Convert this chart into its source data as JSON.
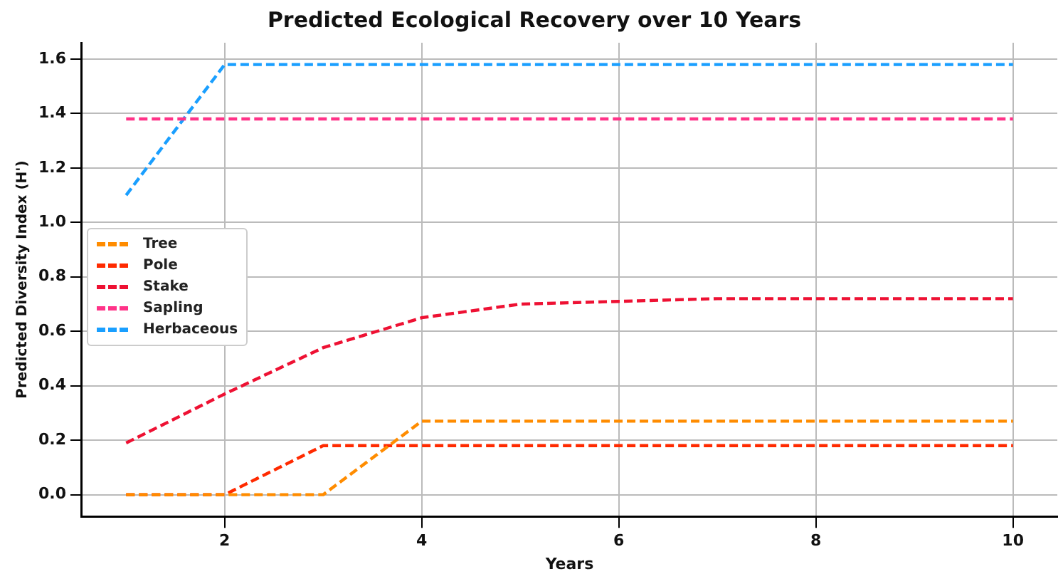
{
  "chart_data": {
    "type": "line",
    "title": "Predicted Ecological Recovery over 10 Years",
    "xlabel": "Years",
    "ylabel": "Predicted Diversity Index (H')",
    "x": [
      1,
      2,
      3,
      4,
      5,
      6,
      7,
      8,
      9,
      10
    ],
    "series": [
      {
        "name": "Tree",
        "color": "#ff8c00",
        "values": [
          0,
          0,
          0,
          0.27,
          0.27,
          0.27,
          0.27,
          0.27,
          0.27,
          0.27
        ]
      },
      {
        "name": "Pole",
        "color": "#ff2a00",
        "values": [
          0,
          0,
          0.18,
          0.18,
          0.18,
          0.18,
          0.18,
          0.18,
          0.18,
          0.18
        ]
      },
      {
        "name": "Stake",
        "color": "#ee1133",
        "values": [
          0.19,
          0.37,
          0.54,
          0.65,
          0.7,
          0.71,
          0.72,
          0.72,
          0.72,
          0.72
        ]
      },
      {
        "name": "Sapling",
        "color": "#ff3388",
        "values": [
          1.38,
          1.38,
          1.38,
          1.38,
          1.38,
          1.38,
          1.38,
          1.38,
          1.38,
          1.38
        ]
      },
      {
        "name": "Herbaceous",
        "color": "#1a9fff",
        "values": [
          1.1,
          1.58,
          1.58,
          1.58,
          1.58,
          1.58,
          1.58,
          1.58,
          1.58,
          1.58
        ]
      }
    ],
    "xlim": [
      0.55,
      10.45
    ],
    "xticks": [
      2,
      4,
      6,
      8,
      10
    ],
    "ylim": [
      -0.08,
      1.66
    ],
    "yticks": [
      {
        "value": 0,
        "label": "0.0"
      },
      0.2,
      0.4,
      0.6,
      0.8,
      {
        "value": 1,
        "label": "1.0"
      },
      1.2,
      1.4,
      1.6
    ],
    "grid": true,
    "legend": "left",
    "line_style": "dashed",
    "marker": "none"
  }
}
